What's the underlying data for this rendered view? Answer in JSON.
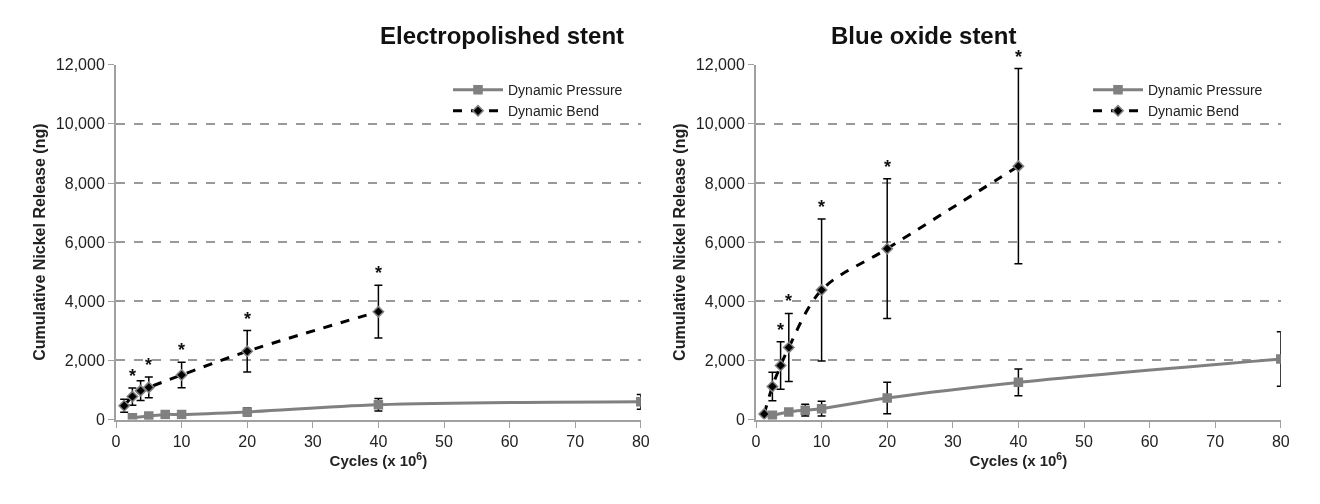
{
  "chart_data": [
    {
      "type": "line",
      "title": "Electropolished stent",
      "xlabel": "Cycles (x 10$^{6}$)",
      "ylabel": "Cumulative Nickel Release (ng)",
      "xlim": [
        0,
        80
      ],
      "xticks": [
        0,
        10,
        20,
        30,
        40,
        50,
        60,
        70,
        80
      ],
      "ylim": [
        0,
        12000
      ],
      "yticks": [
        {
          "value": 0,
          "label": "0"
        },
        {
          "value": 2000,
          "label": "2,000"
        },
        {
          "value": 4000,
          "label": "4,000"
        },
        {
          "value": 6000,
          "label": "6,000"
        },
        {
          "value": 8000,
          "label": "8,000"
        },
        {
          "value": 10000,
          "label": "10,000"
        },
        {
          "value": 12000,
          "label": "12,000"
        }
      ],
      "grid": "y",
      "legend": "top right",
      "series": [
        {
          "name": "Dynamic Pressure",
          "color": "#808080",
          "marker": "square",
          "line_style": "solid",
          "x": [
            2.5,
            5,
            7.5,
            10,
            20,
            40,
            80
          ],
          "values": [
            60,
            120,
            175,
            175,
            260,
            500,
            600
          ],
          "errors": [
            null,
            null,
            null,
            null,
            130,
            210,
            250
          ]
        },
        {
          "name": "Dynamic Bend",
          "color": "#000000",
          "marker": "diamond",
          "line_style": "dashed",
          "x": [
            1.25,
            2.5,
            3.75,
            5,
            10,
            20,
            40
          ],
          "values": [
            470,
            780,
            980,
            1090,
            1510,
            2310,
            3650
          ],
          "errors": [
            220,
            290,
            330,
            350,
            430,
            700,
            890
          ]
        }
      ],
      "annotations": [
        {
          "text": "*",
          "x": 2.5,
          "y": 1070
        },
        {
          "text": "*",
          "x": 5,
          "y": 1440
        },
        {
          "text": "*",
          "x": 10,
          "y": 1940
        },
        {
          "text": "*",
          "x": 20,
          "y": 3010
        },
        {
          "text": "*",
          "x": 40,
          "y": 4540
        }
      ]
    },
    {
      "type": "line",
      "title": "Blue oxide stent",
      "xlabel": "Cycles (x 10$^{6}$)",
      "ylabel": "Cumulative Nickel Release (ng)",
      "xlim": [
        0,
        80
      ],
      "xticks": [
        0,
        10,
        20,
        30,
        40,
        50,
        60,
        70,
        80
      ],
      "ylim": [
        0,
        12000
      ],
      "yticks": [
        {
          "value": 0,
          "label": "0"
        },
        {
          "value": 2000,
          "label": "2,000"
        },
        {
          "value": 4000,
          "label": "4,000"
        },
        {
          "value": 6000,
          "label": "6,000"
        },
        {
          "value": 8000,
          "label": "8,000"
        },
        {
          "value": 10000,
          "label": "10,000"
        },
        {
          "value": 12000,
          "label": "12,000"
        }
      ],
      "grid": "y",
      "legend": "top right",
      "series": [
        {
          "name": "Dynamic Pressure",
          "color": "#808080",
          "marker": "square",
          "line_style": "solid",
          "x": [
            2.5,
            5,
            7.5,
            10,
            20,
            40,
            80
          ],
          "values": [
            150,
            260,
            320,
            370,
            730,
            1260,
            2050
          ],
          "errors": [
            null,
            null,
            200,
            250,
            530,
            450,
            920
          ]
        },
        {
          "name": "Dynamic Bend",
          "color": "#000000",
          "marker": "diamond",
          "line_style": "dashed",
          "x": [
            1.25,
            2.5,
            3.75,
            5,
            10,
            20,
            40
          ],
          "values": [
            190,
            1120,
            1830,
            2440,
            4380,
            5780,
            8570
          ],
          "errors": [
            null,
            480,
            800,
            1150,
            2400,
            2360,
            3300
          ]
        }
      ],
      "annotations": [
        {
          "text": "*",
          "x": 3.75,
          "y": 2630
        },
        {
          "text": "*",
          "x": 5,
          "y": 3590
        },
        {
          "text": "*",
          "x": 10,
          "y": 6780
        },
        {
          "text": "*",
          "x": 20,
          "y": 8140
        },
        {
          "text": "*",
          "x": 40,
          "y": 11870
        }
      ]
    }
  ]
}
